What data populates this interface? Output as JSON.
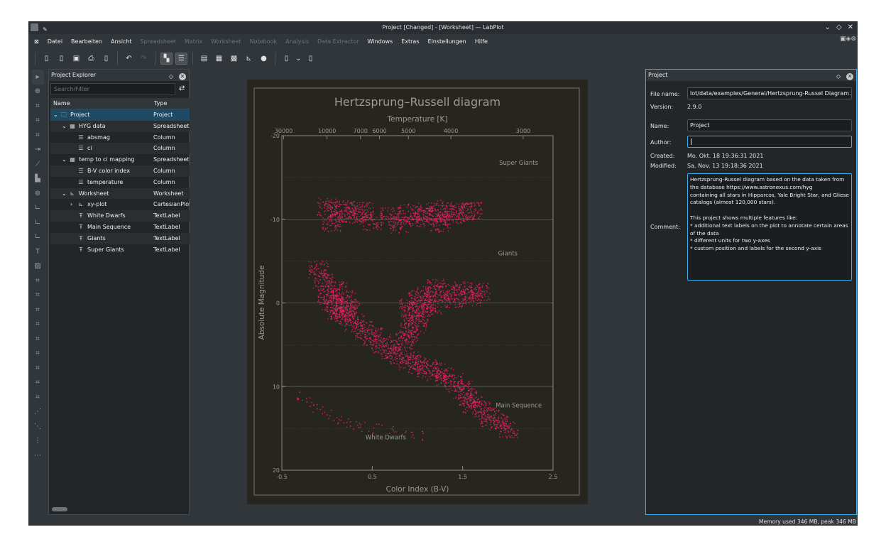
{
  "window": {
    "title": "Project [Changed] - [Worksheet] — LabPlot",
    "controls": [
      "chevron-down",
      "diamond",
      "close"
    ]
  },
  "menu": [
    {
      "label": "Datei",
      "enabled": true
    },
    {
      "label": "Bearbeiten",
      "enabled": true
    },
    {
      "label": "Ansicht",
      "enabled": true
    },
    {
      "label": "Spreadsheet",
      "enabled": false
    },
    {
      "label": "Matrix",
      "enabled": false
    },
    {
      "label": "Worksheet",
      "enabled": false
    },
    {
      "label": "Notebook",
      "enabled": false
    },
    {
      "label": "Analysis",
      "enabled": false
    },
    {
      "label": "Data Extractor",
      "enabled": false
    },
    {
      "label": "Windows",
      "enabled": true
    },
    {
      "label": "Extras",
      "enabled": true
    },
    {
      "label": "Einstellungen",
      "enabled": true
    },
    {
      "label": "Hilfe",
      "enabled": true
    }
  ],
  "explorer": {
    "title": "Project Explorer",
    "search_placeholder": "Search/Filter",
    "col_name": "Name",
    "col_type": "Type",
    "rows": [
      {
        "name": "Project",
        "type": "Project",
        "level": 0,
        "icon": "folder-icon",
        "expand": "v",
        "selected": true
      },
      {
        "name": "HYG data",
        "type": "Spreadsheet",
        "level": 1,
        "icon": "spreadsheet-icon",
        "expand": "v"
      },
      {
        "name": "absmag",
        "type": "Column",
        "level": 2,
        "icon": "column-icon"
      },
      {
        "name": "ci",
        "type": "Column",
        "level": 2,
        "icon": "column-icon"
      },
      {
        "name": "temp to ci mapping",
        "type": "Spreadsheet",
        "level": 1,
        "icon": "spreadsheet-icon",
        "expand": "v"
      },
      {
        "name": "B-V color index",
        "type": "Column",
        "level": 2,
        "icon": "column-icon"
      },
      {
        "name": "temperature",
        "type": "Column",
        "level": 2,
        "icon": "column-icon"
      },
      {
        "name": "Worksheet",
        "type": "Worksheet",
        "level": 1,
        "icon": "worksheet-icon",
        "expand": "v"
      },
      {
        "name": "xy-plot",
        "type": "CartesianPlot",
        "level": 2,
        "icon": "plot-icon",
        "expand": ">"
      },
      {
        "name": "White Dwarfs",
        "type": "TextLabel",
        "level": 2,
        "icon": "textlabel-icon"
      },
      {
        "name": "Main Sequence",
        "type": "TextLabel",
        "level": 2,
        "icon": "textlabel-icon"
      },
      {
        "name": "Giants",
        "type": "TextLabel",
        "level": 2,
        "icon": "textlabel-icon"
      },
      {
        "name": "Super Giants",
        "type": "TextLabel",
        "level": 2,
        "icon": "textlabel-icon"
      }
    ]
  },
  "properties": {
    "title": "Project",
    "file_name_label": "File name:",
    "file_name": "lot/data/examples/General/Hertzsprung-Russel Diagram.lml",
    "version_label": "Version:",
    "version": "2.9.0",
    "name_label": "Name:",
    "name": "Project",
    "author_label": "Author:",
    "author": "",
    "created_label": "Created:",
    "created": "Mo. Okt. 18 19:36:31 2021",
    "modified_label": "Modified:",
    "modified": "Sa. Nov. 13 19:18:36 2021",
    "comment_label": "Comment:",
    "comment": "Hertzsprung-Russel diagram based on the data taken from the database https://www.astronexus.com/hyg\ncontaining all stars in Hipparcos, Yale Bright Star, and Gliese catalogs (almost 120,000 stars).\n\nThis project shows multiple features like:\n* additional text labels on the plot to annotate certain areas of the data\n* different units for two y-axes\n* custom position and labels for the second y-axis"
  },
  "status": "Memory used 346 MB, peak 346 MB",
  "chart_data": {
    "type": "scatter",
    "title": "Hertzsprung–Russell diagram",
    "xlabel": "Color Index (B-V)",
    "ylabel": "Absolute Magnitude",
    "x2label": "Temperature [K]",
    "xlim": [
      -0.5,
      2.5
    ],
    "ylim": [
      -20,
      20
    ],
    "y_inverted": true,
    "x_ticks": [
      "-0.5",
      "0.5",
      "1.5",
      "2.5"
    ],
    "y_ticks": [
      "-20",
      "-10",
      "0",
      "10",
      "20"
    ],
    "x2_ticks": [
      {
        "label": "30000",
        "ci": -0.48
      },
      {
        "label": "10000",
        "ci": 0.0
      },
      {
        "label": "7000",
        "ci": 0.37
      },
      {
        "label": "6000",
        "ci": 0.58
      },
      {
        "label": "5000",
        "ci": 0.9
      },
      {
        "label": "4000",
        "ci": 1.37
      },
      {
        "label": "3000",
        "ci": 2.17
      }
    ],
    "grid": true,
    "point_color": "#ff1f6e",
    "annotations": [
      {
        "text": "Super Giants",
        "ci": 2.12,
        "mag": -16.5
      },
      {
        "text": "Giants",
        "ci": 2.0,
        "mag": -5.7
      },
      {
        "text": "Main Sequence",
        "ci": 2.12,
        "mag": 12.5
      },
      {
        "text": "White Dwarfs",
        "ci": 0.65,
        "mag": 16.3
      }
    ],
    "sample_points": [
      [
        0.0,
        -11.5
      ],
      [
        0.1,
        -10.8
      ],
      [
        0.2,
        -11.2
      ],
      [
        0.3,
        -10.5
      ],
      [
        0.4,
        -11.0
      ],
      [
        0.5,
        -9.8
      ],
      [
        0.7,
        -10.4
      ],
      [
        0.9,
        -10.8
      ],
      [
        1.0,
        -10.2
      ],
      [
        1.1,
        -10.9
      ],
      [
        1.2,
        -10.5
      ],
      [
        1.3,
        -11.3
      ],
      [
        1.4,
        -10.6
      ],
      [
        1.5,
        -10.9
      ],
      [
        1.6,
        -11.1
      ],
      [
        0.8,
        -9.5
      ],
      [
        0.05,
        -9.7
      ],
      [
        1.25,
        -9.6
      ],
      [
        -0.1,
        -4.0
      ],
      [
        -0.05,
        -2.5
      ],
      [
        0.0,
        -1.0
      ],
      [
        0.05,
        0.0
      ],
      [
        0.1,
        0.8
      ],
      [
        0.2,
        1.5
      ],
      [
        0.3,
        2.3
      ],
      [
        0.4,
        3.2
      ],
      [
        0.5,
        4.0
      ],
      [
        0.6,
        4.8
      ],
      [
        0.7,
        5.5
      ],
      [
        0.8,
        6.2
      ],
      [
        0.9,
        6.8
      ],
      [
        1.0,
        7.3
      ],
      [
        1.1,
        7.8
      ],
      [
        1.2,
        8.2
      ],
      [
        1.3,
        8.8
      ],
      [
        1.4,
        9.5
      ],
      [
        1.5,
        10.3
      ],
      [
        1.55,
        11.2
      ],
      [
        1.6,
        12.0
      ],
      [
        1.7,
        12.8
      ],
      [
        1.8,
        13.6
      ],
      [
        1.9,
        14.3
      ],
      [
        2.0,
        15.0
      ],
      [
        0.1,
        -1.5
      ],
      [
        0.2,
        -0.5
      ],
      [
        0.25,
        0.5
      ],
      [
        0.15,
        1.0
      ],
      [
        0.9,
        0.5
      ],
      [
        1.0,
        -0.5
      ],
      [
        1.05,
        0.7
      ],
      [
        1.1,
        -1.0
      ],
      [
        1.15,
        0.2
      ],
      [
        1.2,
        -1.8
      ],
      [
        1.3,
        -1.2
      ],
      [
        1.4,
        -0.6
      ],
      [
        1.5,
        -1.5
      ],
      [
        1.6,
        -0.8
      ],
      [
        1.7,
        -1.3
      ],
      [
        0.95,
        1.5
      ],
      [
        1.0,
        2.5
      ],
      [
        0.9,
        3.5
      ],
      [
        0.85,
        4.5
      ],
      [
        -0.3,
        11.0
      ],
      [
        -0.2,
        11.8
      ],
      [
        -0.1,
        12.5
      ],
      [
        0.0,
        13.2
      ],
      [
        0.1,
        13.8
      ],
      [
        0.2,
        14.2
      ],
      [
        0.3,
        14.5
      ],
      [
        0.4,
        14.8
      ],
      [
        0.55,
        15.0
      ],
      [
        0.7,
        15.3
      ],
      [
        0.9,
        15.6
      ],
      [
        1.0,
        15.8
      ]
    ]
  }
}
